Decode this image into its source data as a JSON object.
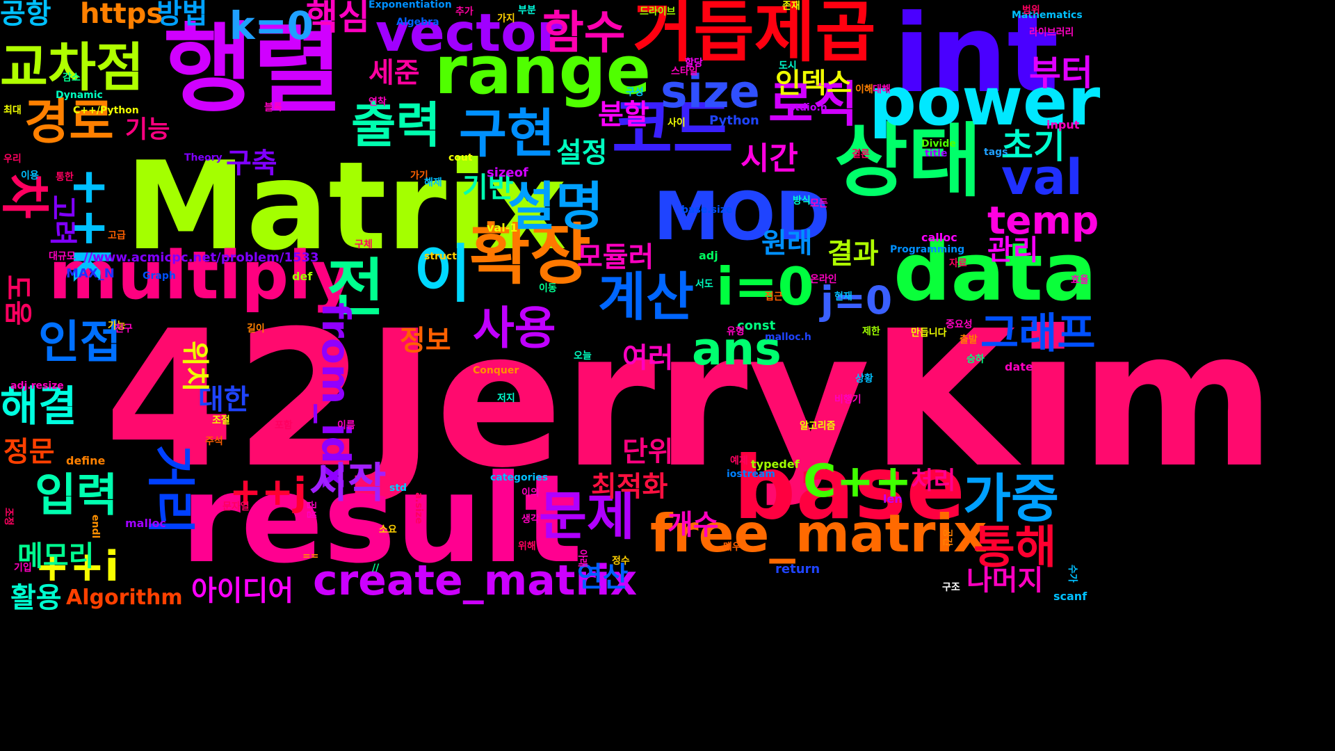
{
  "words": [
    {
      "text": "42JerryKim",
      "color": "#ff0a6e"
    },
    {
      "text": "Matrix",
      "color": "#a4ff00"
    },
    {
      "text": "result",
      "color": "#ff0090"
    },
    {
      "text": "행렬",
      "color": "#d000ff"
    },
    {
      "text": "int",
      "color": "#4a00ff"
    },
    {
      "text": "base",
      "color": "#ff0040"
    },
    {
      "text": "상태",
      "color": "#00ff6a"
    },
    {
      "text": "data",
      "color": "#0aff3a"
    },
    {
      "text": "거듭제곱",
      "color": "#ff0010"
    },
    {
      "text": "MOD",
      "color": "#1f44ff"
    },
    {
      "text": "range",
      "color": "#50ff00"
    },
    {
      "text": "코드",
      "color": "#3a20ff"
    },
    {
      "text": "multiply",
      "color": "#ff0080"
    },
    {
      "text": "power",
      "color": "#00e8ff"
    },
    {
      "text": "확장",
      "color": "#ff7800"
    },
    {
      "text": "이",
      "color": "#00d8ff"
    },
    {
      "text": "전",
      "color": "#00ff90"
    },
    {
      "text": "vector",
      "color": "#a000ff"
    },
    {
      "text": "교차점",
      "color": "#b0ff00"
    },
    {
      "text": "구현",
      "color": "#0090ff"
    },
    {
      "text": "출력",
      "color": "#00ffb0"
    },
    {
      "text": "설명",
      "color": "#00a0ff"
    },
    {
      "text": "계산",
      "color": "#0066ff"
    },
    {
      "text": "i=0",
      "color": "#00ff40"
    },
    {
      "text": "free_matrix",
      "color": "#ff6a00"
    },
    {
      "text": "create_matrix",
      "color": "#cc00ff"
    },
    {
      "text": "로직",
      "color": "#d000ff"
    },
    {
      "text": "val",
      "color": "#2030ff"
    },
    {
      "text": "차",
      "color": "#ff0060"
    },
    {
      "text": "가중",
      "color": "#00a0ff"
    },
    {
      "text": "문제",
      "color": "#b000ff"
    },
    {
      "text": "경로",
      "color": "#ff8000"
    },
    {
      "text": "함수",
      "color": "#ff00b0"
    },
    {
      "text": "size",
      "color": "#3050ff"
    },
    {
      "text": "사용",
      "color": "#c000ff"
    },
    {
      "text": "인접",
      "color": "#0070ff"
    },
    {
      "text": "입력",
      "color": "#00ffb0"
    },
    {
      "text": "C++",
      "color": "#40ff00"
    },
    {
      "text": "ans",
      "color": "#00ff70"
    },
    {
      "text": "통해",
      "color": "#ff0030"
    },
    {
      "text": "그래프",
      "color": "#0050ff"
    },
    {
      "text": "temp",
      "color": "#ff00e0"
    },
    {
      "text": "해결",
      "color": "#00ffe0"
    },
    {
      "text": "k=0",
      "color": "#1fa0ff"
    },
    {
      "text": "++i",
      "color": "#f8ff00"
    },
    {
      "text": "j=0",
      "color": "#3a60ff"
    },
    {
      "text": "from_idx",
      "color": "#9000ff"
    },
    {
      "text": "시작",
      "color": "#a020ff"
    },
    {
      "text": "초기",
      "color": "#00ffd0"
    },
    {
      "text": "핵심",
      "color": "#ff00c0"
    },
    {
      "text": "부터",
      "color": "#e000ff"
    },
    {
      "text": "공항",
      "color": "#00c0ff"
    },
    {
      "text": "방법",
      "color": "#00a0ff"
    },
    {
      "text": "https",
      "color": "#ff8000"
    },
    {
      "text": "세준",
      "color": "#ff00a0"
    },
    {
      "text": "인덱스",
      "color": "#f0ff00"
    },
    {
      "text": "시간",
      "color": "#ff00e0"
    },
    {
      "text": "설정",
      "color": "#00ffc0"
    },
    {
      "text": "분할",
      "color": "#ff00ff"
    },
    {
      "text": "기능",
      "color": "#ff0080"
    },
    {
      "text": "구축",
      "color": "#8000ff"
    },
    {
      "text": "기반",
      "color": "#00ffb0"
    },
    {
      "text": "++k",
      "color": "#00c0ff"
    },
    {
      "text": "모듈러",
      "color": "#ff00c0"
    },
    {
      "text": "원래",
      "color": "#0090ff"
    },
    {
      "text": "결과",
      "color": "#b0ff00"
    },
    {
      "text": "관리",
      "color": "#ff00ff"
    },
    {
      "text": "정보",
      "color": "#ff6000"
    },
    {
      "text": "여러",
      "color": "#ff00c0"
    },
    {
      "text": "대한",
      "color": "#1f44ff"
    },
    {
      "text": "단위",
      "color": "#ff0080"
    },
    {
      "text": "최적화",
      "color": "#ff1040"
    },
    {
      "text": "처리",
      "color": "#ff0090"
    },
    {
      "text": "개수",
      "color": "#ff00c0"
    },
    {
      "text": "연산",
      "color": "#0060ff"
    },
    {
      "text": "나머지",
      "color": "#ff00c0"
    },
    {
      "text": "아이디어",
      "color": "#ff00ff"
    },
    {
      "text": "Algorithm",
      "color": "#ff4000"
    },
    {
      "text": "활용",
      "color": "#00ffd0"
    },
    {
      "text": "메모리",
      "color": "#00ff90"
    },
    {
      "text": "정문",
      "color": "#ff4000"
    },
    {
      "text": "++j",
      "color": "#ff0030"
    },
    {
      "text": "거리",
      "color": "#0040ff"
    },
    {
      "text": "위치",
      "color": "#f0ff00"
    },
    {
      "text": "도움",
      "color": "#ff0060"
    },
    {
      "text": "고려",
      "color": "#8000ff"
    },
    {
      "text": "//www.acmicpc.net/problem/1533",
      "color": "#8000ff"
    },
    {
      "text": "MAX_N",
      "color": "#2030ff"
    },
    {
      "text": "Graph",
      "color": "#0050ff"
    },
    {
      "text": "def",
      "color": "#a0ff00"
    },
    {
      "text": "adj",
      "color": "#00ff60"
    },
    {
      "text": "const",
      "color": "#00ff80"
    },
    {
      "text": "val-1",
      "color": "#f0ff00"
    },
    {
      "text": "sizeof",
      "color": "#d000ff"
    },
    {
      "text": "Python",
      "color": "#1f44ff"
    },
    {
      "text": "stdio.h",
      "color": "#c000ff"
    },
    {
      "text": "struct",
      "color": "#ffd000"
    },
    {
      "text": "malloc.h",
      "color": "#1f44ff"
    },
    {
      "text": "typedef",
      "color": "#a0ff00"
    },
    {
      "text": "iostream",
      "color": "#0080ff"
    },
    {
      "text": "return",
      "color": "#1f44ff"
    },
    {
      "text": "std",
      "color": "#00d0ff"
    },
    {
      "text": "define",
      "color": "#ff8000"
    },
    {
      "text": "malloc",
      "color": "#a000ff"
    },
    {
      "text": "endl",
      "color": "#ff9000"
    },
    {
      "text": "len",
      "color": "#c000ff"
    },
    {
      "text": "scanf",
      "color": "#00c0ff"
    },
    {
      "text": "input",
      "color": "#ff00c0"
    },
    {
      "text": "date",
      "color": "#ff00c0"
    },
    {
      "text": "calloc",
      "color": "#ff00ff"
    },
    {
      "text": "title",
      "color": "#a000ff"
    },
    {
      "text": "tags",
      "color": "#1fa0ff"
    },
    {
      "text": "Divide",
      "color": "#50ff00"
    },
    {
      "text": "Programming",
      "color": "#0090ff"
    },
    {
      "text": "Conquer",
      "color": "#ff9000"
    },
    {
      "text": "categories",
      "color": "#00c0ff"
    },
    {
      "text": "Mathematics",
      "color": "#00c0ff"
    },
    {
      "text": "Exponentiation",
      "color": "#0090ff"
    },
    {
      "text": "Algebra",
      "color": "#0060ff"
    },
    {
      "text": "Theory",
      "color": "#8000ff"
    },
    {
      "text": "Dynamic",
      "color": "#00ffc0"
    },
    {
      "text": "C++/Python",
      "color": "#f0ff00"
    },
    {
      "text": "adj.resize",
      "color": "#ff00c0"
    },
    {
      "text": "base.size",
      "color": "#0050ff"
    },
    {
      "text": "a.size",
      "color": "#ff0060"
    },
    {
      "text": "cout",
      "color": "#f0ff00"
    },
    {
      "text": "==",
      "color": "#ff9000"
    },
    {
      "text": "//",
      "color": "#00ff90"
    },
    {
      "text": "가지",
      "color": "#ffd000"
    },
    {
      "text": "추가",
      "color": "#ff00a0"
    },
    {
      "text": "부분",
      "color": "#00ffe0"
    },
    {
      "text": "드라이브",
      "color": "#a0ff00"
    },
    {
      "text": "존재",
      "color": "#f0ff00"
    },
    {
      "text": "범위",
      "color": "#ff0060"
    },
    {
      "text": "라이브러리",
      "color": "#ff00c0"
    },
    {
      "text": "감소",
      "color": "#00ff90"
    },
    {
      "text": "최대",
      "color": "#f0ff00"
    },
    {
      "text": "우리",
      "color": "#ff0060"
    },
    {
      "text": "이용",
      "color": "#00c0ff"
    },
    {
      "text": "통한",
      "color": "#ff0060"
    },
    {
      "text": "고급",
      "color": "#ff6000"
    },
    {
      "text": "대규모",
      "color": "#ff00c0"
    },
    {
      "text": "구체",
      "color": "#ff0060"
    },
    {
      "text": "연착",
      "color": "#ff00c0"
    },
    {
      "text": "블록",
      "color": "#ff00c0"
    },
    {
      "text": "스타일",
      "color": "#ff00c0"
    },
    {
      "text": "할당",
      "color": "#ff00ff"
    },
    {
      "text": "도시",
      "color": "#00ffd0"
    },
    {
      "text": "이해",
      "color": "#ff8000"
    },
    {
      "text": "대해",
      "color": "#ff00c0"
    },
    {
      "text": "구성",
      "color": "#00c0ff"
    },
    {
      "text": "사이",
      "color": "#f0ff00"
    },
    {
      "text": "결론",
      "color": "#ff0060"
    },
    {
      "text": "가기",
      "color": "#ff6000"
    },
    {
      "text": "해제",
      "color": "#00c0ff"
    },
    {
      "text": "방식",
      "color": "#00ffd0"
    },
    {
      "text": "모든",
      "color": "#ff00c0"
    },
    {
      "text": "자료",
      "color": "#ff0060"
    },
    {
      "text": "서도",
      "color": "#00ffc0"
    },
    {
      "text": "효율",
      "color": "#ff00c0"
    },
    {
      "text": "이동",
      "color": "#00ff90"
    },
    {
      "text": "현재",
      "color": "#00c0ff"
    },
    {
      "text": "접근",
      "color": "#ff6000"
    },
    {
      "text": "온라인",
      "color": "#ff00c0"
    },
    {
      "text": "가능",
      "color": "#ffd000"
    },
    {
      "text": "친구",
      "color": "#ff00c0"
    },
    {
      "text": "길이",
      "color": "#ff8000"
    },
    {
      "text": "유형",
      "color": "#ff00c0"
    },
    {
      "text": "중요성",
      "color": "#ff00c0"
    },
    {
      "text": "제한",
      "color": "#a0ff00"
    },
    {
      "text": "만듭니다",
      "color": "#f0ff00"
    },
    {
      "text": "출발",
      "color": "#ff8000"
    },
    {
      "text": "오늘",
      "color": "#00ffc0"
    },
    {
      "text": "승하",
      "color": "#00ff80"
    },
    {
      "text": "상황",
      "color": "#00c0ff"
    },
    {
      "text": "저지",
      "color": "#00ffd0"
    },
    {
      "text": "비행기",
      "color": "#ff00c0"
    },
    {
      "text": "조절",
      "color": "#f0ff00"
    },
    {
      "text": "포함",
      "color": "#ff0060"
    },
    {
      "text": "이름",
      "color": "#ff00c0"
    },
    {
      "text": "알고리즘",
      "color": "#f0ff00"
    },
    {
      "text": "주석",
      "color": "#ff6000"
    },
    {
      "text": "예제",
      "color": "#ff0060"
    },
    {
      "text": "이의",
      "color": "#ff00c0"
    },
    {
      "text": "곱셈",
      "color": "#ff00c0"
    },
    {
      "text": "문자열",
      "color": "#ff0060"
    },
    {
      "text": "생각",
      "color": "#ff00c0"
    },
    {
      "text": "소요",
      "color": "#ffd000"
    },
    {
      "text": "위해",
      "color": "#ff0060"
    },
    {
      "text": "아래",
      "color": "#ff00c0"
    },
    {
      "text": "정수",
      "color": "#ffd000"
    },
    {
      "text": "매우",
      "color": "#ff6000"
    },
    {
      "text": "공간",
      "color": "#ff8000"
    },
    {
      "text": "수가",
      "color": "#00c0ff"
    },
    {
      "text": "구조",
      "color": "#ffffff"
    },
    {
      "text": "조정",
      "color": "#ff0060"
    },
    {
      "text": "기입",
      "color": "#ff00c0"
    }
  ]
}
